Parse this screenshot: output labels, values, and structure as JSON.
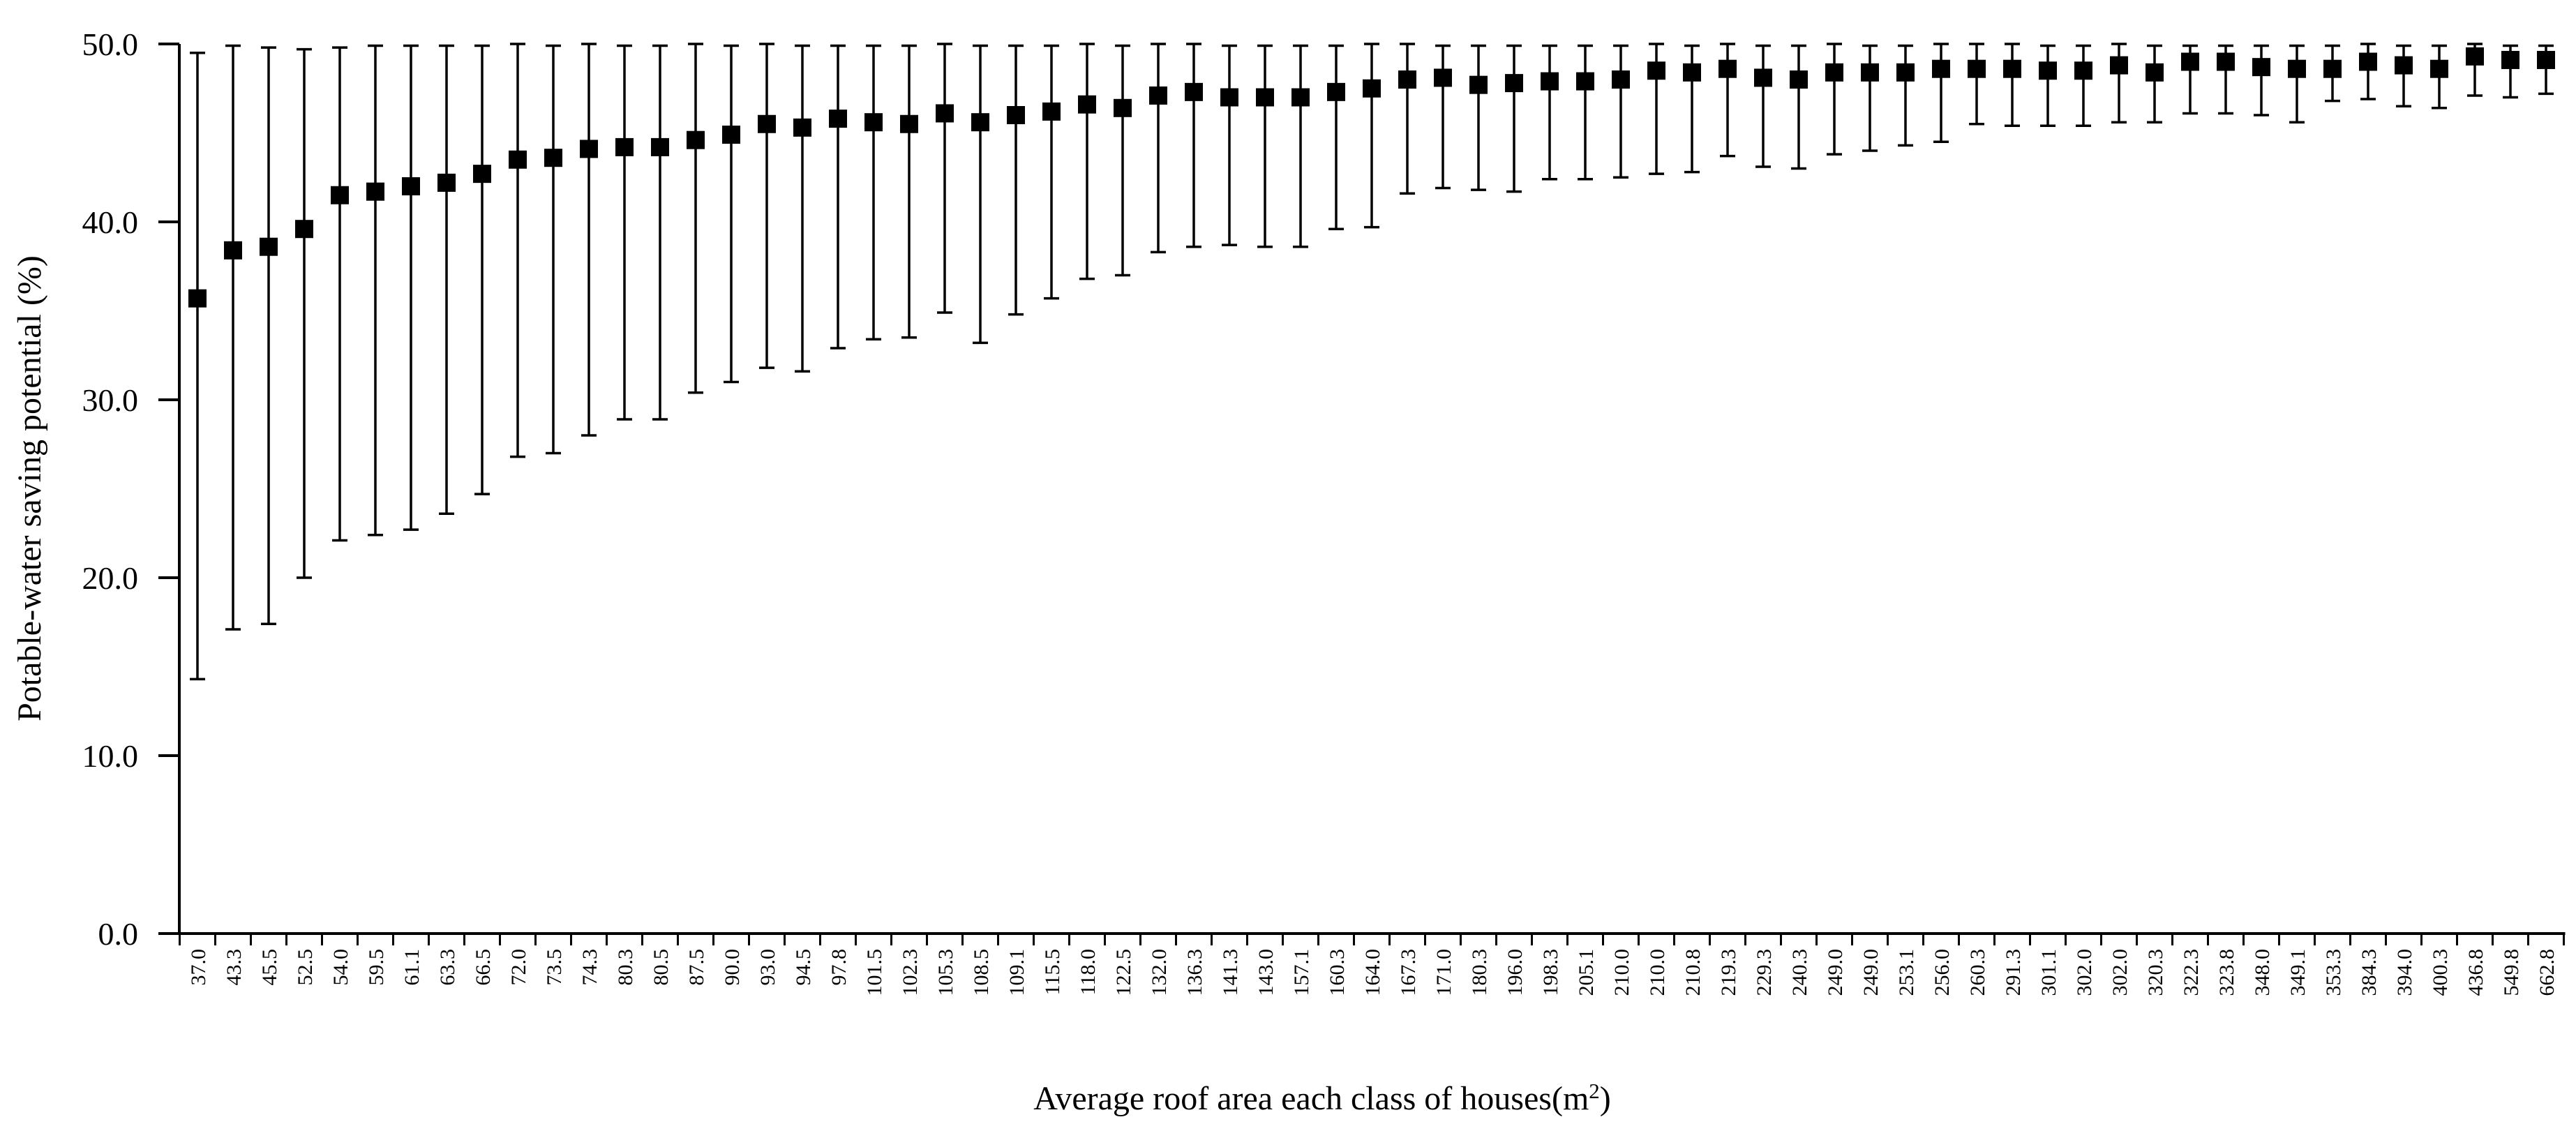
{
  "page": {
    "background": "#ffffff",
    "foreground": "#000000"
  },
  "chart_data": {
    "type": "scatter",
    "subtype": "point-with-asymmetric-error-bars",
    "title": "",
    "xlabel": "Average roof area each class of houses(m²)",
    "ylabel": "Potable-water saving potential (%)",
    "ylim": [
      0,
      50
    ],
    "y_ticks": [
      "0.0",
      "10.0",
      "20.0",
      "30.0",
      "40.0",
      "50.0"
    ],
    "grid": false,
    "legend_position": "none",
    "marker_style": "filled-black-square",
    "marker_color": "#000000",
    "error_bar_color": "#000000",
    "categories": [
      "37.0",
      "43.3",
      "45.5",
      "52.5",
      "54.0",
      "59.5",
      "61.1",
      "63.3",
      "66.5",
      "72.0",
      "73.5",
      "74.3",
      "80.3",
      "80.5",
      "87.5",
      "90.0",
      "93.0",
      "94.5",
      "97.8",
      "101.5",
      "102.3",
      "105.3",
      "108.5",
      "109.1",
      "115.5",
      "118.0",
      "122.5",
      "132.0",
      "136.3",
      "141.3",
      "143.0",
      "157.1",
      "160.3",
      "164.0",
      "167.3",
      "171.0",
      "180.3",
      "196.0",
      "198.3",
      "205.1",
      "210.0",
      "210.0",
      "210.8",
      "219.3",
      "229.3",
      "240.3",
      "249.0",
      "249.0",
      "253.1",
      "256.0",
      "260.3",
      "291.3",
      "301.1",
      "302.0",
      "302.0",
      "320.3",
      "322.3",
      "323.8",
      "348.0",
      "349.1",
      "353.3",
      "384.3",
      "394.0",
      "400.3",
      "436.8",
      "549.8",
      "662.8"
    ],
    "series": [
      {
        "name": "Potable-water saving potential",
        "values": [
          35.7,
          38.4,
          38.6,
          39.6,
          41.5,
          41.7,
          42.0,
          42.2,
          42.7,
          43.5,
          43.6,
          44.1,
          44.2,
          44.2,
          44.6,
          44.9,
          45.5,
          45.3,
          45.8,
          45.6,
          45.5,
          46.1,
          45.6,
          46.0,
          46.2,
          46.6,
          46.4,
          47.1,
          47.3,
          47.0,
          47.0,
          47.0,
          47.3,
          47.5,
          48.0,
          48.1,
          47.7,
          47.8,
          47.9,
          47.9,
          48.0,
          48.5,
          48.4,
          48.6,
          48.1,
          48.0,
          48.4,
          48.4,
          48.4,
          48.6,
          48.6,
          48.6,
          48.5,
          48.5,
          48.8,
          48.4,
          49.0,
          49.0,
          48.7,
          48.6,
          48.6,
          49.0,
          48.8,
          48.6,
          49.3,
          49.1,
          49.1
        ],
        "whisker_low": [
          14.3,
          17.1,
          17.4,
          20.0,
          22.1,
          22.4,
          22.7,
          23.6,
          24.7,
          26.8,
          27.0,
          28.0,
          28.9,
          28.9,
          30.4,
          31.0,
          31.8,
          31.6,
          32.9,
          33.4,
          33.5,
          34.9,
          33.2,
          34.8,
          35.7,
          36.8,
          37.0,
          38.3,
          38.6,
          38.7,
          38.6,
          38.6,
          39.6,
          39.7,
          41.6,
          41.9,
          41.8,
          41.7,
          42.4,
          42.4,
          42.5,
          42.7,
          42.8,
          43.7,
          43.1,
          43.0,
          43.8,
          44.0,
          44.3,
          44.5,
          45.5,
          45.4,
          45.4,
          45.4,
          45.6,
          45.6,
          46.1,
          46.1,
          46.0,
          45.6,
          46.8,
          46.9,
          46.5,
          46.4,
          47.1,
          47.0,
          47.2
        ],
        "whisker_high": [
          49.5,
          49.9,
          49.8,
          49.7,
          49.8,
          49.9,
          49.9,
          49.9,
          49.9,
          50.0,
          49.9,
          50.0,
          49.9,
          49.9,
          50.0,
          49.9,
          50.0,
          49.9,
          49.9,
          49.9,
          49.9,
          50.0,
          49.9,
          49.9,
          49.9,
          50.0,
          49.9,
          50.0,
          50.0,
          49.9,
          49.9,
          49.9,
          49.9,
          50.0,
          50.0,
          49.9,
          49.9,
          49.9,
          49.9,
          49.9,
          49.9,
          50.0,
          49.9,
          50.0,
          49.9,
          49.9,
          50.0,
          49.9,
          49.9,
          50.0,
          50.0,
          50.0,
          49.9,
          49.9,
          50.0,
          49.9,
          49.9,
          49.9,
          49.9,
          49.9,
          49.9,
          50.0,
          49.9,
          49.9,
          50.0,
          49.9,
          49.9
        ]
      }
    ]
  }
}
